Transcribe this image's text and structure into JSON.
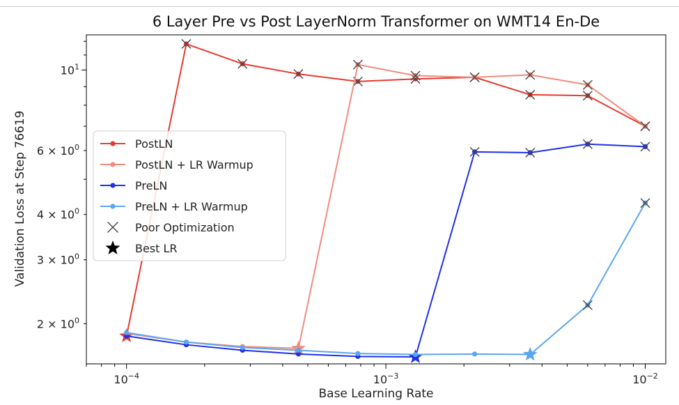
{
  "chart_data": {
    "type": "line",
    "title": "6 Layer Pre vs Post LayerNorm Transformer on WMT14 En-De",
    "xlabel": "Base Learning Rate",
    "ylabel": "Validation Loss at Step 76619",
    "xscale": "log",
    "yscale": "log",
    "xlim": [
      7e-05,
      0.012
    ],
    "ylim": [
      1.55,
      12.5
    ],
    "x_ticks": [
      {
        "value": 0.0001,
        "base": "10",
        "exp": "−4"
      },
      {
        "value": 0.001,
        "base": "10",
        "exp": "−3"
      },
      {
        "value": 0.01,
        "base": "10",
        "exp": "−2"
      }
    ],
    "y_ticks": [
      {
        "value": 10,
        "base": "10",
        "exp": "1"
      },
      {
        "value": 6,
        "base": "6 × 10",
        "exp": "0"
      },
      {
        "value": 4,
        "base": "4 × 10",
        "exp": "0"
      },
      {
        "value": 3,
        "base": "3 × 10",
        "exp": "0"
      },
      {
        "value": 2,
        "base": "2 × 10",
        "exp": "0"
      }
    ],
    "grid": false,
    "legend_position": "center-left",
    "series": [
      {
        "name": "PostLN",
        "color": "#e8392f",
        "points": [
          [
            0.0001,
            1.85
          ],
          [
            0.00017,
            11.8
          ],
          [
            0.00028,
            10.4
          ],
          [
            0.00046,
            9.75
          ],
          [
            0.00078,
            9.3
          ],
          [
            0.0013,
            9.45
          ],
          [
            0.0022,
            9.55
          ],
          [
            0.0036,
            8.55
          ],
          [
            0.006,
            8.5
          ],
          [
            0.01,
            7.0
          ]
        ],
        "poor": [
          false,
          true,
          true,
          true,
          true,
          true,
          true,
          true,
          true,
          true
        ],
        "best_index": 0
      },
      {
        "name": "PostLN + LR Warmup",
        "color": "#f08b7e",
        "points": [
          [
            0.0001,
            1.88
          ],
          [
            0.00017,
            1.78
          ],
          [
            0.00028,
            1.73
          ],
          [
            0.00046,
            1.71
          ],
          [
            0.00078,
            10.35
          ],
          [
            0.0013,
            9.65
          ],
          [
            0.0022,
            9.55
          ],
          [
            0.0036,
            9.7
          ],
          [
            0.006,
            9.1
          ],
          [
            0.01,
            7.0
          ]
        ],
        "poor": [
          false,
          false,
          false,
          false,
          true,
          true,
          true,
          true,
          true,
          true
        ],
        "best_index": 3
      },
      {
        "name": "PreLN",
        "color": "#1f2fe8",
        "points": [
          [
            0.0001,
            1.85
          ],
          [
            0.00017,
            1.75
          ],
          [
            0.00028,
            1.69
          ],
          [
            0.00046,
            1.65
          ],
          [
            0.00078,
            1.625
          ],
          [
            0.0013,
            1.62
          ],
          [
            0.0022,
            5.95
          ],
          [
            0.0036,
            5.92
          ],
          [
            0.006,
            6.25
          ],
          [
            0.01,
            6.15
          ]
        ],
        "poor": [
          false,
          false,
          false,
          false,
          false,
          false,
          true,
          true,
          true,
          true
        ],
        "best_index": 5
      },
      {
        "name": "PreLN + LR Warmup",
        "color": "#5aa6ef",
        "points": [
          [
            0.0001,
            1.89
          ],
          [
            0.00017,
            1.78
          ],
          [
            0.00028,
            1.72
          ],
          [
            0.00046,
            1.69
          ],
          [
            0.00078,
            1.655
          ],
          [
            0.0013,
            1.645
          ],
          [
            0.0022,
            1.65
          ],
          [
            0.0036,
            1.645
          ],
          [
            0.006,
            2.25
          ],
          [
            0.01,
            4.3
          ]
        ],
        "poor": [
          false,
          false,
          false,
          false,
          false,
          false,
          false,
          false,
          true,
          true
        ],
        "best_index": 7
      }
    ],
    "marker_legend": [
      {
        "name": "Poor Optimization",
        "marker": "x",
        "color": "#444444"
      },
      {
        "name": "Best LR",
        "marker": "star",
        "color": "#000000"
      }
    ]
  }
}
